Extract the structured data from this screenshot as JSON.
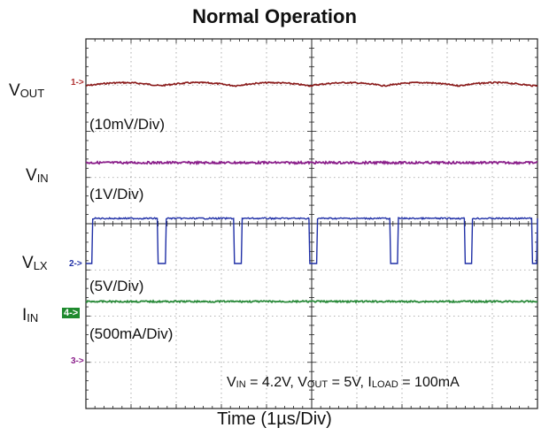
{
  "chart_data": {
    "type": "line",
    "title": "Normal Operation",
    "xlabel": "Time (1µs/Div)",
    "x_divisions": 10,
    "y_divisions": 8,
    "grid": true,
    "series": [
      {
        "key": "vout",
        "name": "VOUT",
        "label_main": "V",
        "label_sub": "OUT",
        "scale": "(10mV/Div)",
        "marker": "1->",
        "color": "#8a1a1a",
        "waveform": "ripple",
        "period_us": 1.65,
        "ripple_mv": 5
      },
      {
        "key": "vin",
        "name": "VIN",
        "label_main": "V",
        "label_sub": "IN",
        "scale": "(1V/Div)",
        "marker": "",
        "color": "#8a1e8a",
        "waveform": "dc"
      },
      {
        "key": "vlx",
        "name": "VLX",
        "label_main": "V",
        "label_sub": "LX",
        "scale": "(5V/Div)",
        "marker": "2->",
        "color": "#1f2fa6",
        "waveform": "switching",
        "low_pulses_us": [
          [
            0.0,
            0.15
          ],
          [
            1.58,
            1.78
          ],
          [
            3.27,
            3.46
          ],
          [
            4.94,
            5.13
          ],
          [
            6.73,
            6.92
          ],
          [
            8.38,
            8.56
          ],
          [
            9.87,
            10.0
          ]
        ]
      },
      {
        "key": "iin",
        "name": "IIN",
        "label_main": "I",
        "label_sub": "IN",
        "scale": "(500mA/Div)",
        "marker": "4->",
        "color": "#2a8a3a",
        "waveform": "dc"
      }
    ],
    "ch3_marker": "3->",
    "conditions": {
      "vin_main": "V",
      "vin_sub": "IN",
      "vin_val": " = 4.2V, ",
      "vout_main": "V",
      "vout_sub": "OUT",
      "vout_val": " = 5V, ",
      "iload_main": "I",
      "iload_sub": "LOAD",
      "iload_val": " = 100mA"
    }
  }
}
